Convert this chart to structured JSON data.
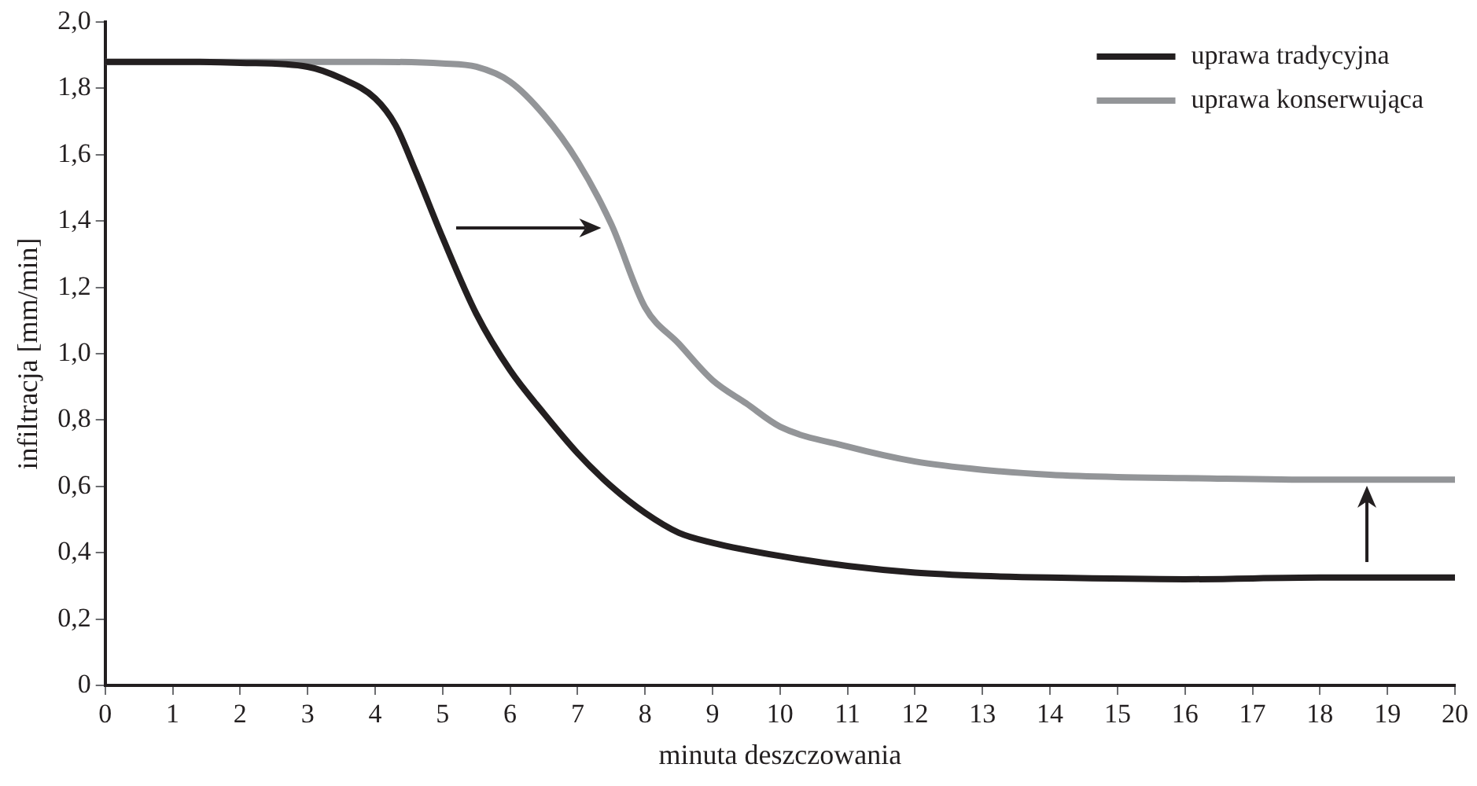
{
  "chart_data": {
    "type": "line",
    "xlabel": "minuta deszczowania",
    "ylabel": "infiltracja [mm/min]",
    "x": [
      0,
      1,
      2,
      3,
      3.5,
      4,
      4.3,
      4.6,
      5,
      5.5,
      6,
      6.5,
      7,
      7.5,
      8,
      8.5,
      9,
      10,
      11,
      12,
      13,
      14,
      16,
      18,
      20
    ],
    "series": [
      {
        "name": "uprawa tradycyjna",
        "color": "#231f20",
        "values": [
          1.88,
          1.88,
          1.877,
          1.865,
          1.83,
          1.77,
          1.69,
          1.55,
          1.35,
          1.12,
          0.95,
          0.82,
          0.7,
          0.6,
          0.52,
          0.46,
          0.43,
          0.39,
          0.36,
          0.34,
          0.33,
          0.325,
          0.32,
          0.325,
          0.325
        ]
      },
      {
        "name": "uprawa konserwująca",
        "color": "#939598",
        "x": [
          0,
          2,
          4,
          5,
          5.5,
          6,
          6.5,
          7,
          7.5,
          8,
          8.5,
          9,
          9.5,
          10,
          11,
          12,
          13,
          14,
          15,
          16,
          18,
          20
        ],
        "values": [
          1.88,
          1.88,
          1.88,
          1.875,
          1.865,
          1.82,
          1.72,
          1.58,
          1.39,
          1.14,
          1.03,
          0.92,
          0.85,
          0.78,
          0.72,
          0.675,
          0.65,
          0.635,
          0.628,
          0.625,
          0.62,
          0.62
        ]
      }
    ],
    "xlim": [
      0,
      20
    ],
    "xticks": [
      0,
      1,
      2,
      3,
      4,
      5,
      6,
      7,
      8,
      9,
      10,
      11,
      12,
      13,
      14,
      15,
      16,
      17,
      18,
      19,
      20
    ],
    "ylim": [
      0,
      2
    ],
    "yticks": [
      {
        "value": 0,
        "label": "0"
      },
      {
        "value": 0.2,
        "label": "0,2"
      },
      {
        "value": 0.4,
        "label": "0,4"
      },
      {
        "value": 0.6,
        "label": "0,6"
      },
      {
        "value": 0.8,
        "label": "0,8"
      },
      {
        "value": 1,
        "label": "1,0"
      },
      {
        "value": 1.2,
        "label": "1,2"
      },
      {
        "value": 1.4,
        "label": "1,4"
      },
      {
        "value": 1.6,
        "label": "1,6"
      },
      {
        "value": 1.8,
        "label": "1,8"
      },
      {
        "value": 2,
        "label": "2,0"
      }
    ],
    "legend": "top right",
    "marker": "none",
    "line_style": "solid"
  }
}
